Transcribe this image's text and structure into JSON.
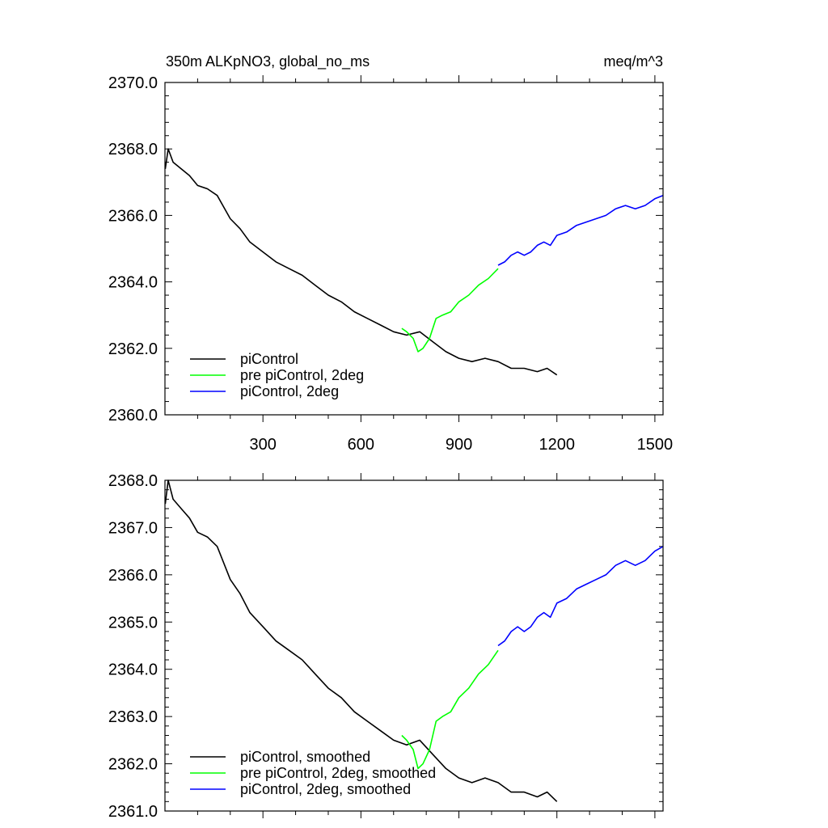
{
  "chart_data": [
    {
      "type": "line",
      "title": "350m ALKpNO3, global_no_ms",
      "units": "meq/m^3",
      "xlim": [
        0,
        1525
      ],
      "ylim": [
        2360.0,
        2370.0
      ],
      "x_ticks": [
        300,
        600,
        900,
        1200,
        1500
      ],
      "y_ticks": [
        2360.0,
        2362.0,
        2364.0,
        2366.0,
        2368.0,
        2370.0
      ],
      "y_tick_labels": [
        "2360.0",
        "2362.0",
        "2364.0",
        "2366.0",
        "2368.0",
        "2370.0"
      ],
      "x_tick_labels": [
        "300",
        "600",
        "900",
        "1200",
        "1500"
      ],
      "legend_position": "bottom-left",
      "series": [
        {
          "name": "piControl",
          "color": "#000000",
          "x": [
            1,
            10,
            25,
            50,
            75,
            100,
            130,
            160,
            200,
            230,
            260,
            300,
            340,
            380,
            420,
            460,
            500,
            540,
            580,
            620,
            660,
            700,
            740,
            780,
            820,
            860,
            900,
            940,
            980,
            1020,
            1060,
            1100,
            1140,
            1170,
            1200
          ],
          "y": [
            2367.4,
            2368.0,
            2367.6,
            2367.4,
            2367.2,
            2366.9,
            2366.8,
            2366.6,
            2365.9,
            2365.6,
            2365.2,
            2364.9,
            2364.6,
            2364.4,
            2364.2,
            2363.9,
            2363.6,
            2363.4,
            2363.1,
            2362.9,
            2362.7,
            2362.5,
            2362.4,
            2362.5,
            2362.2,
            2361.9,
            2361.7,
            2361.6,
            2361.7,
            2361.6,
            2361.4,
            2361.4,
            2361.3,
            2361.4,
            2361.2
          ]
        },
        {
          "name": "pre piControl, 2deg",
          "color": "#00ff00",
          "x": [
            725,
            740,
            760,
            775,
            790,
            810,
            830,
            850,
            875,
            900,
            930,
            960,
            990,
            1020
          ],
          "y": [
            2362.6,
            2362.5,
            2362.3,
            2361.9,
            2362.0,
            2362.3,
            2362.9,
            2363.0,
            2363.1,
            2363.4,
            2363.6,
            2363.9,
            2364.1,
            2364.4
          ]
        },
        {
          "name": "piControl, 2deg",
          "color": "#0000ff",
          "x": [
            1020,
            1040,
            1060,
            1080,
            1100,
            1120,
            1140,
            1160,
            1180,
            1200,
            1230,
            1260,
            1290,
            1320,
            1350,
            1380,
            1410,
            1440,
            1470,
            1500,
            1525
          ],
          "y": [
            2364.5,
            2364.6,
            2364.8,
            2364.9,
            2364.8,
            2364.9,
            2365.1,
            2365.2,
            2365.1,
            2365.4,
            2365.5,
            2365.7,
            2365.8,
            2365.9,
            2366.0,
            2366.2,
            2366.3,
            2366.2,
            2366.3,
            2366.5,
            2366.6
          ]
        }
      ]
    },
    {
      "type": "line",
      "title": "",
      "xlim": [
        0,
        1525
      ],
      "ylim": [
        2361.0,
        2368.0
      ],
      "x_ticks": [
        300,
        600,
        900,
        1200,
        1500
      ],
      "y_ticks": [
        2361.0,
        2362.0,
        2363.0,
        2364.0,
        2365.0,
        2366.0,
        2367.0,
        2368.0
      ],
      "y_tick_labels": [
        "2361.0",
        "2362.0",
        "2363.0",
        "2364.0",
        "2365.0",
        "2366.0",
        "2367.0",
        "2368.0"
      ],
      "legend_position": "bottom-left",
      "series": [
        {
          "name": "piControl, smoothed",
          "color": "#000000",
          "x": [
            1,
            10,
            25,
            50,
            75,
            100,
            130,
            160,
            200,
            230,
            260,
            300,
            340,
            380,
            420,
            460,
            500,
            540,
            580,
            620,
            660,
            700,
            740,
            780,
            820,
            860,
            900,
            940,
            980,
            1020,
            1060,
            1100,
            1140,
            1170,
            1200
          ],
          "y": [
            2367.5,
            2368.0,
            2367.6,
            2367.4,
            2367.2,
            2366.9,
            2366.8,
            2366.6,
            2365.9,
            2365.6,
            2365.2,
            2364.9,
            2364.6,
            2364.4,
            2364.2,
            2363.9,
            2363.6,
            2363.4,
            2363.1,
            2362.9,
            2362.7,
            2362.5,
            2362.4,
            2362.5,
            2362.2,
            2361.9,
            2361.7,
            2361.6,
            2361.7,
            2361.6,
            2361.4,
            2361.4,
            2361.3,
            2361.4,
            2361.2
          ]
        },
        {
          "name": "pre piControl, 2deg, smoothed",
          "color": "#00ff00",
          "x": [
            725,
            740,
            760,
            775,
            790,
            810,
            830,
            850,
            875,
            900,
            930,
            960,
            990,
            1020
          ],
          "y": [
            2362.6,
            2362.5,
            2362.3,
            2361.9,
            2362.0,
            2362.3,
            2362.9,
            2363.0,
            2363.1,
            2363.4,
            2363.6,
            2363.9,
            2364.1,
            2364.4
          ]
        },
        {
          "name": "piControl, 2deg, smoothed",
          "color": "#0000ff",
          "x": [
            1020,
            1040,
            1060,
            1080,
            1100,
            1120,
            1140,
            1160,
            1180,
            1200,
            1230,
            1260,
            1290,
            1320,
            1350,
            1380,
            1410,
            1440,
            1470,
            1500,
            1525
          ],
          "y": [
            2364.5,
            2364.6,
            2364.8,
            2364.9,
            2364.8,
            2364.9,
            2365.1,
            2365.2,
            2365.1,
            2365.4,
            2365.5,
            2365.7,
            2365.8,
            2365.9,
            2366.0,
            2366.2,
            2366.3,
            2366.2,
            2366.3,
            2366.5,
            2366.6
          ]
        }
      ]
    }
  ]
}
